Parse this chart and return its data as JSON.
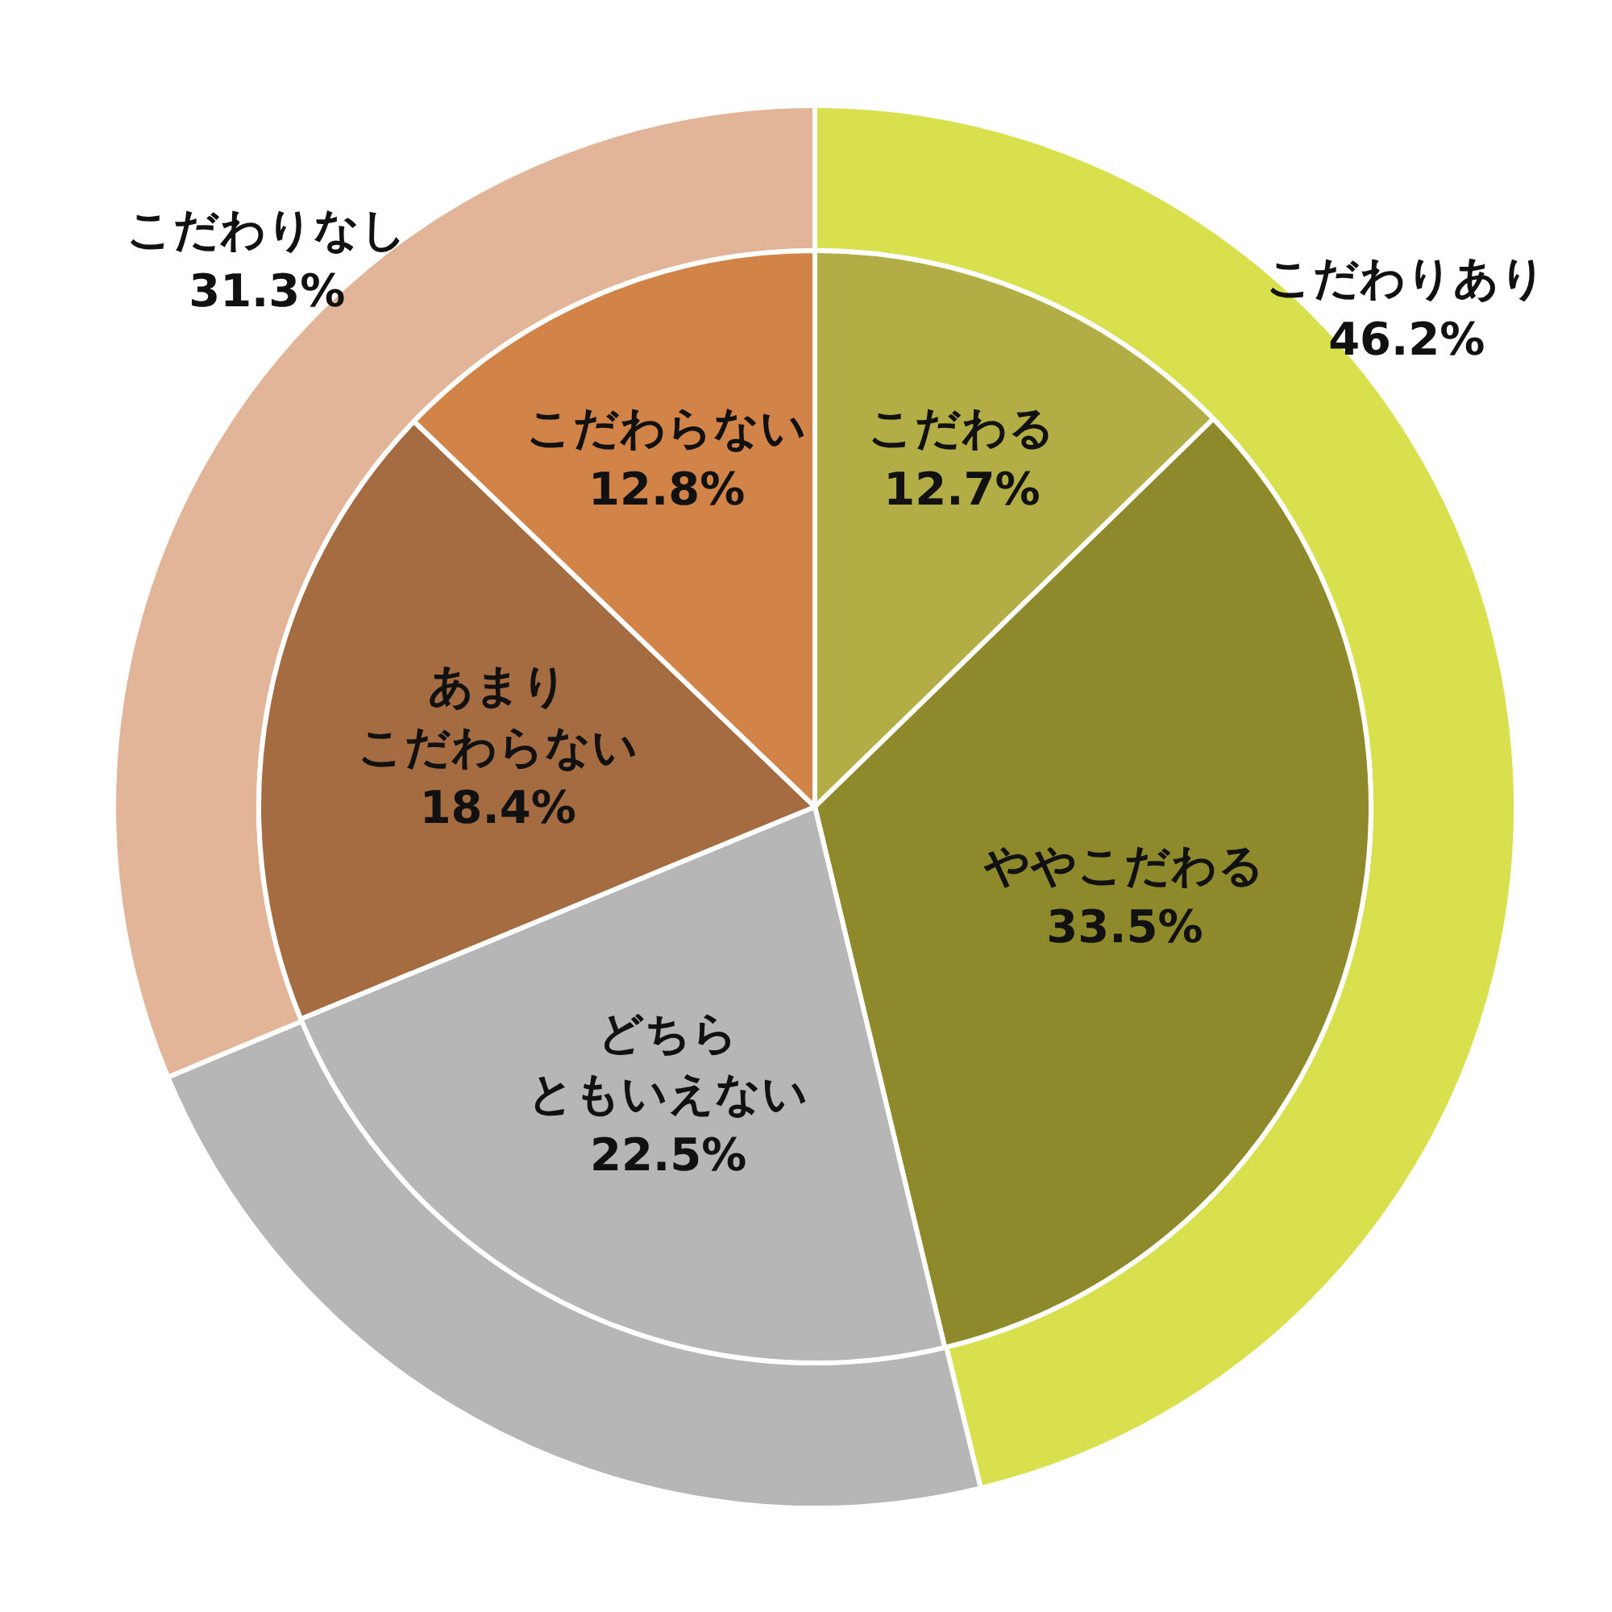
{
  "chart_data": {
    "type": "pie",
    "categories": [
      "こだわる",
      "ややこだわる",
      "どちらともいえない",
      "あまりこだわらない",
      "こだわらない"
    ],
    "series": [
      {
        "values": [
          12.7,
          33.5,
          22.5,
          18.4,
          12.8
        ],
        "value_labels": [
          "12.7%",
          "33.5%",
          "22.5%",
          "18.4%",
          "12.8%"
        ],
        "colors": [
          "#b2ae45",
          "#8e8a2c",
          "#b5b6b5",
          "#a56c42",
          "#d28448"
        ]
      },
      {
        "type": "donut",
        "values": [
          46.2,
          null,
          22.5,
          31.3,
          null
        ],
        "value_labels": [
          "46.2%",
          null,
          null,
          "31.3%",
          null
        ],
        "colors": [
          "#d9e04e",
          null,
          "#b5b6b5",
          "#e3b598",
          null
        ]
      }
    ],
    "annotations": [
      "こだわりあり",
      "こだわりなし"
    ]
  }
}
